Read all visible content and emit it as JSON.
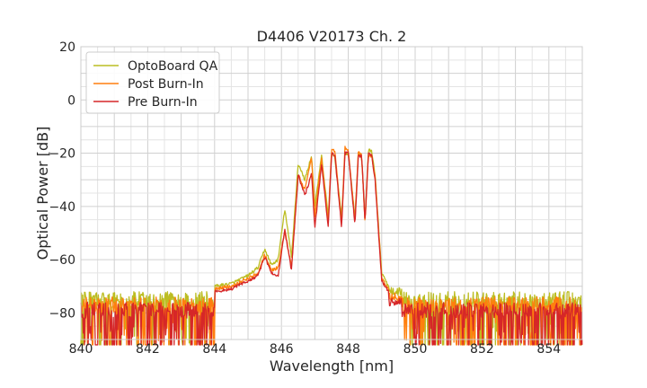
{
  "chart_data": {
    "type": "line",
    "title": "D4406 V20173 Ch. 2",
    "xlabel": "Wavelength [nm]",
    "ylabel": "Optical Power [dB]",
    "xlim": [
      840,
      855
    ],
    "ylim": [
      -90,
      20
    ],
    "xticks": [
      840,
      842,
      844,
      846,
      848,
      850,
      852,
      854
    ],
    "yticks": [
      20,
      0,
      -20,
      -40,
      -60,
      -80
    ],
    "grid": true,
    "legend_position": "top-left",
    "series": [
      {
        "name": "OptoBoard QA",
        "color": "#bcbd22",
        "noise_floor": -75,
        "x": [
          844.0,
          844.5,
          845.0,
          845.3,
          845.5,
          845.7,
          845.9,
          846.1,
          846.3,
          846.5,
          846.7,
          846.9,
          847.0,
          847.2,
          847.4,
          847.5,
          847.6,
          847.8,
          847.9,
          848.0,
          848.2,
          848.3,
          848.4,
          848.5,
          848.6,
          848.7,
          848.8,
          849.0,
          849.2
        ],
        "y": [
          -70,
          -69,
          -66,
          -63,
          -56,
          -62,
          -60,
          -41,
          -59,
          -24,
          -30,
          -21,
          -40,
          -21,
          -44,
          -20,
          -22,
          -44,
          -20,
          -20,
          -44,
          -20,
          -22,
          -45,
          -19,
          -19,
          -28,
          -65,
          -70
        ]
      },
      {
        "name": "Post Burn-In",
        "color": "#ff7f0e",
        "noise_floor": -77,
        "x": [
          844.0,
          844.5,
          845.0,
          845.3,
          845.5,
          845.7,
          845.9,
          846.1,
          846.3,
          846.5,
          846.7,
          846.9,
          847.0,
          847.2,
          847.4,
          847.5,
          847.6,
          847.8,
          847.9,
          848.0,
          848.2,
          848.3,
          848.4,
          848.5,
          848.6,
          848.7,
          848.8,
          849.0,
          849.2
        ],
        "y": [
          -71,
          -70,
          -67,
          -65,
          -58,
          -64,
          -63,
          -49,
          -63,
          -28,
          -34,
          -21,
          -44,
          -22,
          -46,
          -19,
          -19,
          -47,
          -18,
          -19,
          -46,
          -19,
          -21,
          -46,
          -21,
          -21,
          -29,
          -67,
          -71
        ]
      },
      {
        "name": "Pre Burn-In",
        "color": "#d62728",
        "noise_floor": -79,
        "x": [
          844.0,
          844.5,
          845.0,
          845.3,
          845.5,
          845.7,
          845.9,
          846.1,
          846.3,
          846.5,
          846.7,
          846.9,
          847.0,
          847.2,
          847.4,
          847.5,
          847.6,
          847.8,
          847.9,
          848.0,
          848.2,
          848.3,
          848.4,
          848.5,
          848.6,
          848.7,
          848.8,
          849.0,
          849.2
        ],
        "y": [
          -72,
          -71,
          -68,
          -66,
          -59,
          -65,
          -66,
          -49,
          -64,
          -28,
          -36,
          -28,
          -48,
          -24,
          -48,
          -20,
          -21,
          -48,
          -20,
          -20,
          -47,
          -21,
          -21,
          -46,
          -20,
          -21,
          -30,
          -68,
          -72
        ]
      }
    ]
  }
}
